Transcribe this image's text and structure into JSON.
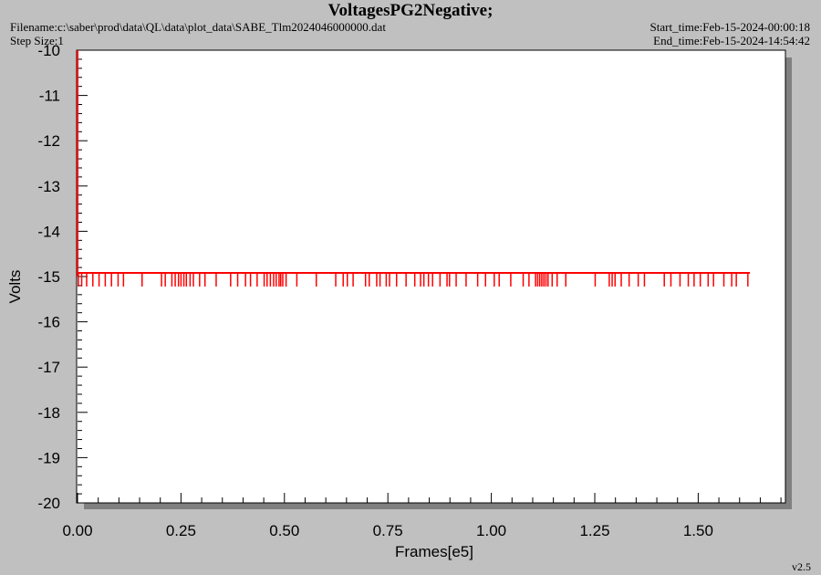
{
  "header": {
    "title": "VoltagesPG2Negative;",
    "filename": "Filename:c:\\saber\\prod\\data\\QL\\data\\plot_data\\SABE_Tlm2024046000000.dat",
    "step_size": "Step Size:1",
    "start_time": "Start_time:Feb-15-2024-00:00:18",
    "end_time": "End_time:Feb-15-2024-14:54:42"
  },
  "footer": {
    "version": "v2.5"
  },
  "colors": {
    "background": "#c0c0c0",
    "plot_bg": "#ffffff",
    "series": "#ff0000",
    "shadow": "#808080"
  },
  "chart_data": {
    "type": "line",
    "title": "VoltagesPG2Negative;",
    "xlabel": "Frames[e5]",
    "ylabel": "Volts",
    "xlim": [
      0,
      1.72
    ],
    "ylim": [
      -20,
      -10
    ],
    "x_ticks": [
      "0.00",
      "0.25",
      "0.50",
      "0.75",
      "1.00",
      "1.25",
      "1.50"
    ],
    "x_tick_values": [
      0,
      0.25,
      0.5,
      0.75,
      1.0,
      1.25,
      1.5
    ],
    "y_ticks": [
      "-10",
      "-11",
      "-12",
      "-13",
      "-14",
      "-15",
      "-16",
      "-17",
      "-18",
      "-19",
      "-20"
    ],
    "y_tick_values": [
      -10,
      -11,
      -12,
      -13,
      -14,
      -15,
      -16,
      -17,
      -18,
      -19,
      -20
    ],
    "grid": false,
    "legend": "none",
    "series": [
      {
        "baseline": -14.92,
        "glitch_low": -15.22,
        "x_start": 0.0,
        "x_end": 1.625,
        "initial_spike": {
          "x": 0.0,
          "from": -10,
          "to": -15
        },
        "glitch_x": [
          0.002,
          0.01,
          0.022,
          0.037,
          0.052,
          0.067,
          0.082,
          0.098,
          0.111,
          0.156,
          0.203,
          0.212,
          0.228,
          0.236,
          0.244,
          0.25,
          0.257,
          0.263,
          0.272,
          0.28,
          0.295,
          0.308,
          0.335,
          0.37,
          0.387,
          0.406,
          0.418,
          0.434,
          0.451,
          0.458,
          0.466,
          0.474,
          0.48,
          0.487,
          0.491,
          0.496,
          0.504,
          0.53,
          0.577,
          0.624,
          0.642,
          0.652,
          0.666,
          0.696,
          0.705,
          0.723,
          0.731,
          0.746,
          0.754,
          0.771,
          0.794,
          0.815,
          0.829,
          0.837,
          0.848,
          0.858,
          0.876,
          0.893,
          0.899,
          0.915,
          0.939,
          0.967,
          0.986,
          1.007,
          1.019,
          1.047,
          1.077,
          1.091,
          1.107,
          1.112,
          1.117,
          1.122,
          1.127,
          1.132,
          1.137,
          1.147,
          1.159,
          1.18,
          1.251,
          1.285,
          1.292,
          1.299,
          1.314,
          1.333,
          1.355,
          1.37,
          1.418,
          1.434,
          1.456,
          1.476,
          1.49,
          1.505,
          1.524,
          1.537,
          1.562,
          1.581,
          1.592,
          1.62
        ]
      }
    ]
  }
}
